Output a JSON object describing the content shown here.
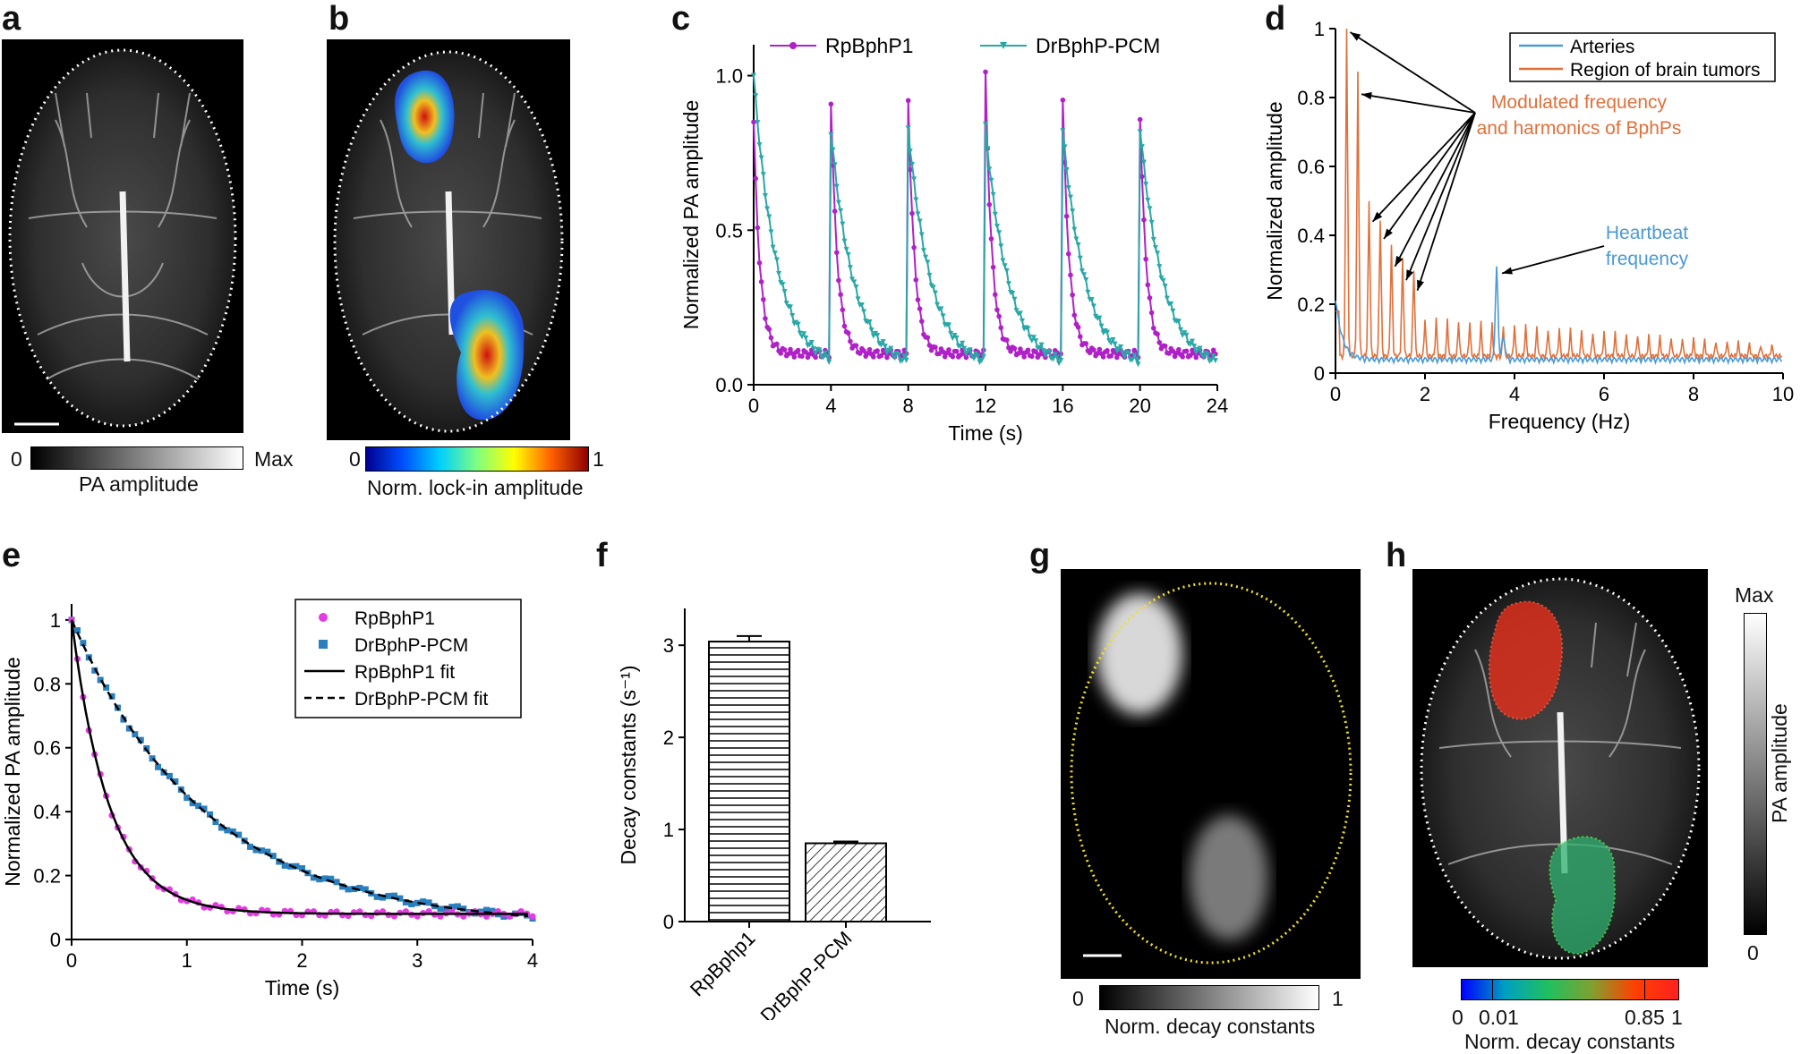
{
  "panels": {
    "a": {
      "label": "a",
      "cbar_min": "0",
      "cbar_max": "Max",
      "cbar_title": "PA amplitude"
    },
    "b": {
      "label": "b",
      "cbar_min": "0",
      "cbar_max": "1",
      "cbar_title": "Norm. lock-in amplitude"
    },
    "g": {
      "label": "g",
      "cbar_min": "0",
      "cbar_max": "1",
      "cbar_title": "Norm. decay constants"
    },
    "h": {
      "label": "h",
      "cbar_ticks": [
        "0",
        "0.01",
        "0.85",
        "1"
      ],
      "cbar_title": "Norm. decay constants",
      "vbar_max": "Max",
      "vbar_min": "0",
      "vbar_title": "PA amplitude"
    }
  },
  "colors": {
    "magenta": "#b020c8",
    "teal": "#2aa7a7",
    "arteries": "#4a9ad6",
    "tumor": "#e0703a",
    "rp_points": "#e53be5",
    "dr_points": "#2a7fbf"
  },
  "chart_data": [
    {
      "panel": "c",
      "type": "line",
      "title": "",
      "xlabel": "Time (s)",
      "ylabel": "Normalized PA amplitude",
      "xlim": [
        0,
        24
      ],
      "ylim": [
        0,
        1.1
      ],
      "xticks": [
        "0",
        "4",
        "8",
        "12",
        "16",
        "20",
        "24"
      ],
      "yticks": [
        "0.0",
        "0.5",
        "1.0"
      ],
      "legend": "top",
      "series": [
        {
          "name": "RpBphP1",
          "decay_rate": 3.0,
          "baseline": 0.1,
          "peaks": [
            0.85,
            0.92,
            0.92,
            1.0,
            0.92,
            0.87
          ]
        },
        {
          "name": "DrBphP-PCM",
          "decay_rate": 0.85,
          "baseline": 0.05,
          "peaks": [
            1.0,
            0.82,
            0.83,
            0.83,
            0.82,
            0.83
          ]
        }
      ],
      "cycle_period_s": 4
    },
    {
      "panel": "d",
      "type": "line",
      "xlabel": "Frequency (Hz)",
      "ylabel": "Normalized amplitude",
      "xlim": [
        0,
        10
      ],
      "ylim": [
        0,
        1
      ],
      "xticks": [
        "0",
        "2",
        "4",
        "6",
        "8",
        "10"
      ],
      "yticks": [
        "0",
        "0.2",
        "0.4",
        "0.6",
        "0.8",
        "1"
      ],
      "legend": "top-right",
      "series": [
        {
          "name": "Arteries",
          "heartbeat_peak": {
            "x": 3.6,
            "y": 0.3
          },
          "dc": 0.18
        },
        {
          "name": "Region of brain tumors",
          "peaks": [
            {
              "x": 0.25,
              "y": 1.0
            },
            {
              "x": 0.5,
              "y": 0.82
            },
            {
              "x": 0.75,
              "y": 0.45
            },
            {
              "x": 1.0,
              "y": 0.4
            },
            {
              "x": 1.25,
              "y": 0.32
            },
            {
              "x": 1.5,
              "y": 0.28
            },
            {
              "x": 1.75,
              "y": 0.25
            }
          ]
        }
      ],
      "annotations": [
        {
          "text": "Modulated frequency",
          "sub": "and harmonics of BphPs"
        },
        {
          "text": "Heartbeat",
          "sub": "frequency"
        }
      ]
    },
    {
      "panel": "e",
      "type": "scatter",
      "xlabel": "Time (s)",
      "ylabel": "Normalized PA amplitude",
      "xlim": [
        0,
        4
      ],
      "ylim": [
        0,
        1.05
      ],
      "xticks": [
        "0",
        "1",
        "2",
        "3",
        "4"
      ],
      "yticks": [
        "0",
        "0.2",
        "0.4",
        "0.6",
        "0.8",
        "1"
      ],
      "legend": "top-right",
      "series": [
        {
          "name": "RpBphP1",
          "k": 3.05,
          "baseline": 0.08
        },
        {
          "name": "DrBphP-PCM",
          "k": 0.85,
          "baseline": 0.04
        },
        {
          "name": "RpBphP1 fit"
        },
        {
          "name": "DrBphP-PCM fit"
        }
      ]
    },
    {
      "panel": "f",
      "type": "bar",
      "ylabel": "Decay constants (s⁻¹)",
      "categories": [
        "RpBphp1",
        "DrBphP-PCM"
      ],
      "values": [
        3.04,
        0.85
      ],
      "errors": [
        0.06,
        0.02
      ],
      "ylim": [
        0,
        3.4
      ],
      "yticks": [
        "0",
        "1",
        "2",
        "3"
      ]
    }
  ]
}
